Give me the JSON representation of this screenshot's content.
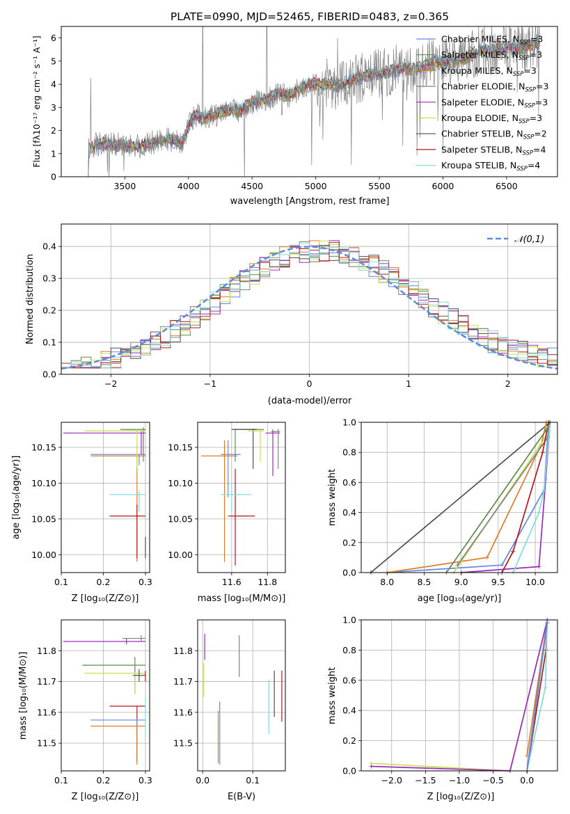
{
  "figure": {
    "title": "PLATE=0990, MJD=52465, FIBERID=0483, z=0.365"
  },
  "legend_spectrum": [
    {
      "label": "Chabrier MILES, N",
      "sub": "SSP",
      "tail": "=3",
      "color": "#5f89e3"
    },
    {
      "label": "Salpeter MILES, N",
      "sub": "SSP",
      "tail": "=3",
      "color": "#5e8a4f"
    },
    {
      "label": "Kroupa MILES, N",
      "sub": "SSP",
      "tail": "=3",
      "color": "#e07b27"
    },
    {
      "label": "Chabrier ELODIE, N",
      "sub": "SSP",
      "tail": "=3",
      "color": "#808080"
    },
    {
      "label": "Salpeter ELODIE, N",
      "sub": "SSP",
      "tail": "=3",
      "color": "#9c2bbd"
    },
    {
      "label": "Kroupa ELODIE, N",
      "sub": "SSP",
      "tail": "=3",
      "color": "#c8e04e"
    },
    {
      "label": "Chabrier STELIB, N",
      "sub": "SSP",
      "tail": "=2",
      "color": "#4d4d4d"
    },
    {
      "label": "Salpeter STELIB, N",
      "sub": "SSP",
      "tail": "=4",
      "color": "#b0171c"
    },
    {
      "label": "Kroupa STELIB, N",
      "sub": "SSP",
      "tail": "=4",
      "color": "#84d9e0"
    }
  ],
  "chart_data": [
    {
      "type": "line",
      "panel": "spectrum",
      "xlabel": "wavelength [Angstrom, rest frame]",
      "ylabel": "Flux [fλ10⁻¹⁷ erg cm⁻² s⁻¹ A⁻¹]",
      "xlim": [
        3000,
        6900
      ],
      "ylim": [
        0,
        6.5
      ],
      "xticks": [
        3500,
        4000,
        4500,
        5000,
        5500,
        6000,
        6500
      ],
      "yticks": [
        0,
        1,
        2,
        3,
        4,
        5,
        6
      ],
      "x": [
        3200,
        3250,
        3300,
        3400,
        3500,
        3600,
        3700,
        3800,
        3900,
        3950,
        4000,
        4050,
        4100,
        4200,
        4300,
        4400,
        4500,
        4600,
        4700,
        4800,
        4900,
        5000,
        5100,
        5200,
        5300,
        5400,
        5500,
        5600,
        5700,
        5800,
        5900,
        6000,
        6100,
        6200,
        6300,
        6400,
        6500,
        6600,
        6750
      ],
      "y": [
        1.2,
        1.3,
        1.45,
        1.4,
        1.35,
        1.3,
        1.45,
        1.6,
        1.55,
        1.5,
        2.2,
        2.7,
        2.55,
        2.65,
        2.9,
        2.85,
        3.2,
        3.3,
        3.6,
        3.5,
        3.9,
        4.0,
        4.05,
        3.95,
        4.2,
        4.4,
        4.45,
        4.6,
        4.7,
        4.65,
        4.9,
        5.0,
        4.95,
        5.2,
        5.5,
        5.45,
        5.6,
        5.55,
        5.8
      ],
      "grid": false,
      "legend_position": "right"
    },
    {
      "type": "line",
      "panel": "residual-histogram",
      "xlabel": "(data-model)/error",
      "ylabel": "Normed distribution",
      "xlim": [
        -2.5,
        2.5
      ],
      "ylim": [
        0,
        0.47
      ],
      "xticks": [
        -2,
        -1,
        0,
        1,
        2
      ],
      "yticks": [
        0.0,
        0.1,
        0.2,
        0.3,
        0.4
      ],
      "reference_label": "𝒩(0,1)",
      "grid": true,
      "legend_position": "top-right"
    },
    {
      "type": "scatter",
      "panel": "age-vs-Z",
      "xlabel": "Z [log₁₀(Z/Z⊙)]",
      "ylabel": "age  [log₁₀(age/yr)]",
      "xlim": [
        0.1,
        0.31
      ],
      "ylim": [
        9.975,
        10.185
      ],
      "xticks": [
        0.1,
        0.2,
        0.3
      ],
      "yticks": [
        10.0,
        10.05,
        10.1,
        10.15
      ],
      "grid": true
    },
    {
      "type": "scatter",
      "panel": "age-vs-mass",
      "xlabel": "mass [log₁₀(M/M⊙)]",
      "xlim": [
        11.41,
        11.9
      ],
      "ylim": [
        9.975,
        10.185
      ],
      "xticks": [
        11.6,
        11.8
      ],
      "yticks": [
        10.0,
        10.05,
        10.1,
        10.15
      ],
      "grid": true
    },
    {
      "type": "line",
      "panel": "mass-weight-vs-age",
      "xlabel": "age  [log₁₀(age/yr)]",
      "ylabel": "mass weight",
      "xlim": [
        7.65,
        10.3
      ],
      "ylim": [
        0,
        1.0
      ],
      "xticks": [
        8.0,
        8.5,
        9.0,
        9.5,
        10.0
      ],
      "yticks": [
        0.0,
        0.2,
        0.4,
        0.6,
        0.8,
        1.0
      ],
      "grid": true
    },
    {
      "type": "scatter",
      "panel": "mass-vs-Z",
      "xlabel": "Z [log₁₀(Z/Z⊙)]",
      "ylabel": "mass [log₁₀(M/M⊙)]",
      "xlim": [
        0.1,
        0.31
      ],
      "ylim": [
        11.41,
        11.9
      ],
      "xticks": [
        0.1,
        0.2,
        0.3
      ],
      "yticks": [
        11.5,
        11.6,
        11.7,
        11.8
      ],
      "grid": true
    },
    {
      "type": "scatter",
      "panel": "mass-vs-ebv",
      "xlabel": "E(B-V)",
      "xlim": [
        -0.01,
        0.165
      ],
      "ylim": [
        11.41,
        11.9
      ],
      "xticks": [
        0.0,
        0.1
      ],
      "yticks": [
        11.5,
        11.6,
        11.7,
        11.8
      ],
      "grid": true
    },
    {
      "type": "line",
      "panel": "mass-weight-vs-Z",
      "xlabel": "Z [log₁₀(Z/Z⊙)]",
      "ylabel": "mass weight",
      "xlim": [
        -2.45,
        0.45
      ],
      "ylim": [
        0,
        1.0
      ],
      "xticks": [
        -2.0,
        -1.5,
        -1.0,
        -0.5,
        0.0
      ],
      "yticks": [
        0.0,
        0.2,
        0.4,
        0.6,
        0.8,
        1.0
      ],
      "grid": true
    }
  ],
  "tick_text": {
    "p1x": [
      "3500",
      "4000",
      "4500",
      "5000",
      "5500",
      "6000",
      "6500"
    ],
    "p1y": [
      "0",
      "1",
      "2",
      "3",
      "4",
      "5",
      "6"
    ],
    "p2x": [
      "−2",
      "−1",
      "0",
      "1",
      "2"
    ],
    "p2y": [
      "0.0",
      "0.1",
      "0.2",
      "0.3",
      "0.4"
    ],
    "p3x": [
      "0.1",
      "0.2",
      "0.3"
    ],
    "age_y": [
      "10.00",
      "10.05",
      "10.10",
      "10.15"
    ],
    "p4x": [
      "11.6",
      "11.8"
    ],
    "mw_y": [
      "0.0",
      "0.2",
      "0.4",
      "0.6",
      "0.8",
      "1.0"
    ],
    "p5x": [
      "8.0",
      "8.5",
      "9.0",
      "9.5",
      "10.0"
    ],
    "mass_y": [
      "11.5",
      "11.6",
      "11.7",
      "11.8"
    ],
    "p7x": [
      "0.0",
      "0.1"
    ],
    "p8x": [
      "−2.0",
      "−1.5",
      "−1.0",
      "−0.5",
      "0.0"
    ]
  }
}
